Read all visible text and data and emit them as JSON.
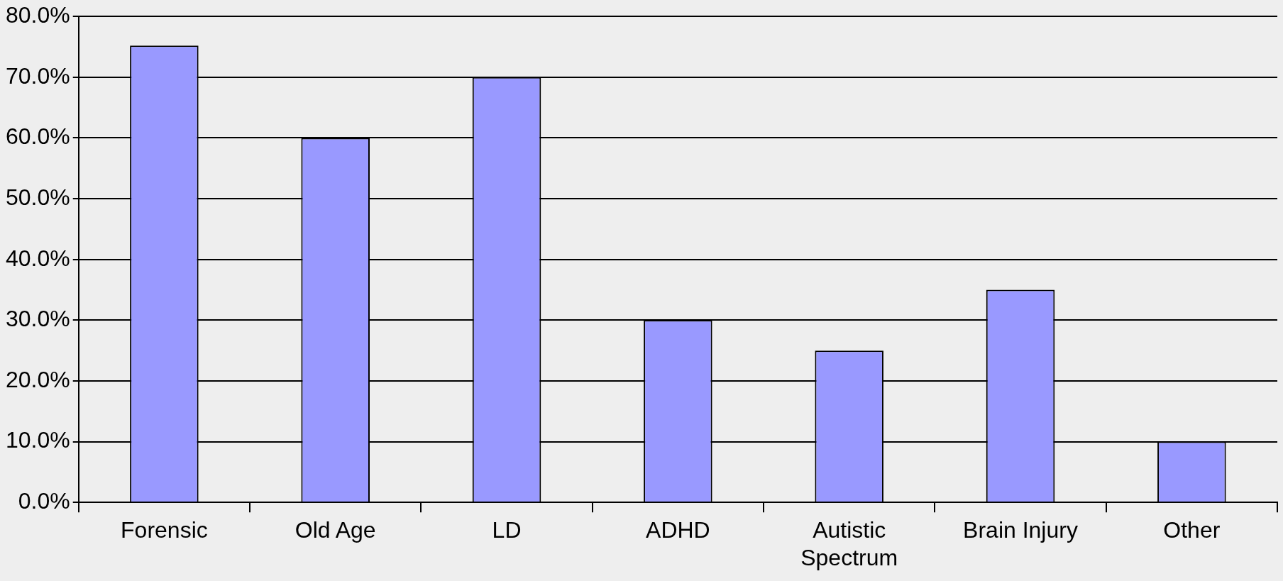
{
  "chart_data": {
    "type": "bar",
    "categories": [
      "Forensic",
      "Old Age",
      "LD",
      "ADHD",
      "Autistic Spectrum",
      "Brain Injury",
      "Other"
    ],
    "values": [
      75.2,
      60,
      70,
      30,
      25,
      35,
      10
    ],
    "color": "#9999ff",
    "ylim": [
      0,
      80
    ],
    "yticks": [
      {
        "value": 0,
        "label": "0.0%"
      },
      {
        "value": 10,
        "label": "10.0%"
      },
      {
        "value": 20,
        "label": "20.0%"
      },
      {
        "value": 30,
        "label": "30.0%"
      },
      {
        "value": 40,
        "label": "40.0%"
      },
      {
        "value": 50,
        "label": "50.0%"
      },
      {
        "value": 60,
        "label": "60.0%"
      },
      {
        "value": 70,
        "label": "70.0%"
      },
      {
        "value": 80,
        "label": "80.0%"
      }
    ],
    "grid": "y",
    "legend": false
  }
}
